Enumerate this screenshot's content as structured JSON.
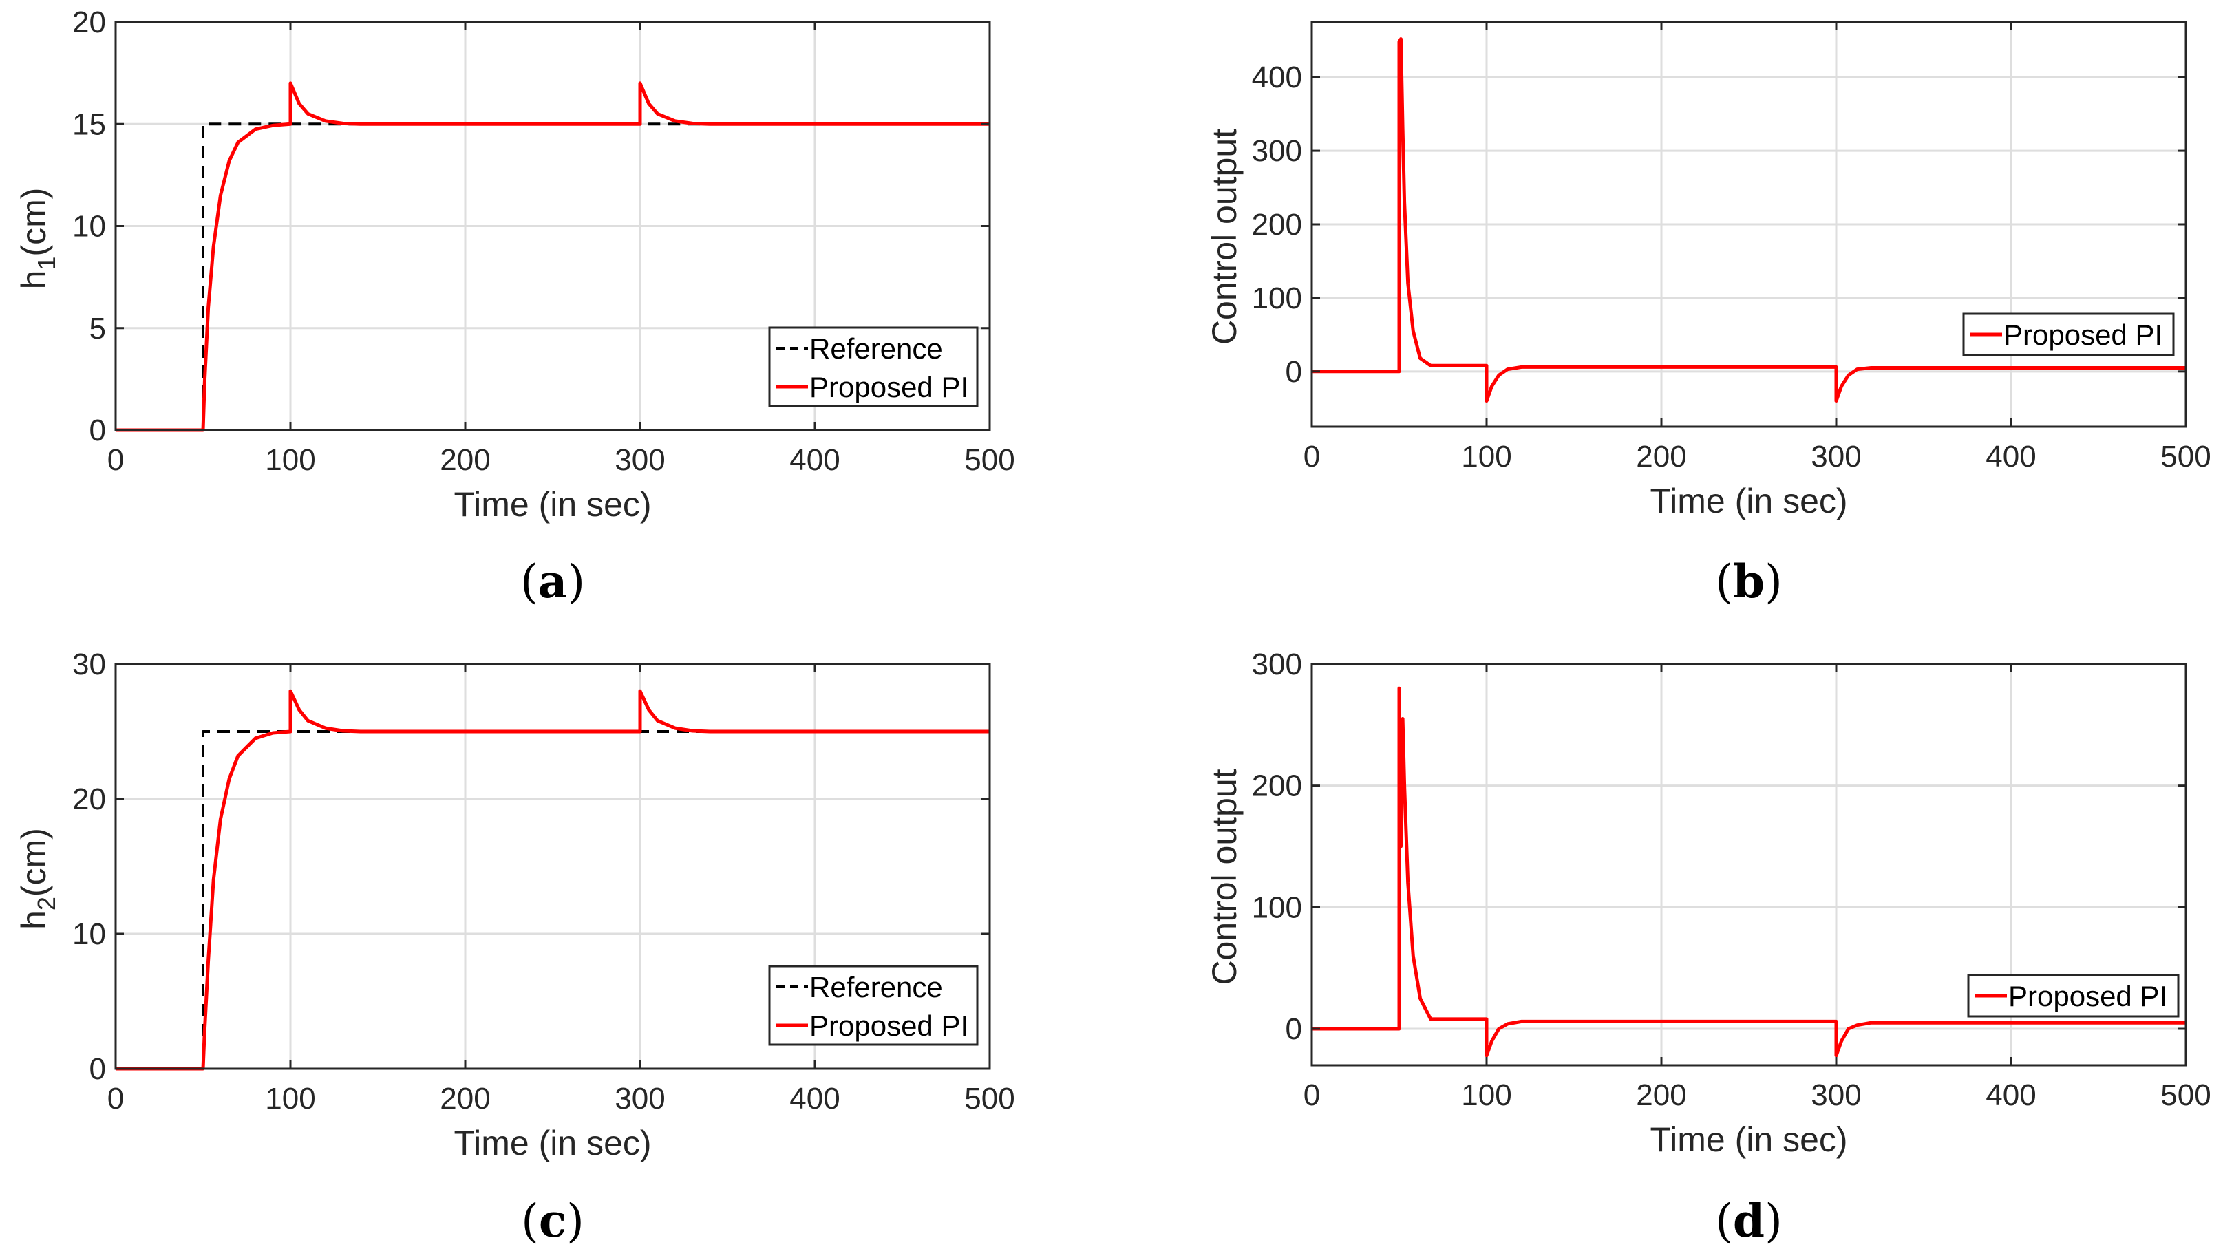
{
  "figure": {
    "panel_count": 4
  },
  "chart_data": [
    {
      "type": "line",
      "panel": "a",
      "caption_letter": "a",
      "xlabel": "Time (in sec)",
      "ylabel_main": "h",
      "ylabel_sub": "1",
      "ylabel_suffix": "(cm)",
      "xlim": [
        0,
        500
      ],
      "ylim": [
        0,
        20
      ],
      "xticks": [
        0,
        100,
        200,
        300,
        400,
        500
      ],
      "yticks": [
        0,
        5,
        10,
        15,
        20
      ],
      "grid": true,
      "legend_position": "bottom-right",
      "series": [
        {
          "name": "Reference",
          "style": "dashed",
          "color": "#000000",
          "points": [
            [
              0,
              0
            ],
            [
              50,
              0
            ],
            [
              50,
              15
            ],
            [
              500,
              15
            ]
          ]
        },
        {
          "name": "Proposed PI",
          "style": "solid",
          "color": "#ff0000",
          "points": [
            [
              0,
              0
            ],
            [
              50,
              0
            ],
            [
              51,
              2.5
            ],
            [
              53,
              6
            ],
            [
              56,
              9
            ],
            [
              60,
              11.5
            ],
            [
              65,
              13.2
            ],
            [
              70,
              14.1
            ],
            [
              80,
              14.75
            ],
            [
              90,
              14.93
            ],
            [
              100,
              15
            ],
            [
              100,
              17
            ],
            [
              105,
              16
            ],
            [
              110,
              15.5
            ],
            [
              120,
              15.15
            ],
            [
              130,
              15.03
            ],
            [
              140,
              15
            ],
            [
              300,
              15
            ],
            [
              300,
              17
            ],
            [
              305,
              16
            ],
            [
              310,
              15.5
            ],
            [
              320,
              15.15
            ],
            [
              330,
              15.03
            ],
            [
              340,
              15
            ],
            [
              500,
              15
            ]
          ]
        }
      ]
    },
    {
      "type": "line",
      "panel": "b",
      "caption_letter": "b",
      "xlabel": "Time (in sec)",
      "ylabel": "Control output",
      "xlim": [
        0,
        500
      ],
      "ylim": [
        -75,
        475
      ],
      "xticks": [
        0,
        100,
        200,
        300,
        400,
        500
      ],
      "yticks": [
        0,
        100,
        200,
        300,
        400
      ],
      "grid": true,
      "legend_position": "right",
      "series": [
        {
          "name": "Proposed PI",
          "style": "solid",
          "color": "#ff0000",
          "points": [
            [
              0,
              0
            ],
            [
              50,
              0
            ],
            [
              50,
              448
            ],
            [
              51,
              452
            ],
            [
              52,
              330
            ],
            [
              53,
              230
            ],
            [
              55,
              120
            ],
            [
              58,
              55
            ],
            [
              62,
              18
            ],
            [
              68,
              8
            ],
            [
              100,
              8
            ],
            [
              100,
              -40
            ],
            [
              103,
              -20
            ],
            [
              107,
              -5
            ],
            [
              112,
              3
            ],
            [
              120,
              6
            ],
            [
              300,
              6
            ],
            [
              300,
              -40
            ],
            [
              303,
              -20
            ],
            [
              307,
              -5
            ],
            [
              312,
              3
            ],
            [
              320,
              5
            ],
            [
              500,
              5
            ]
          ]
        }
      ]
    },
    {
      "type": "line",
      "panel": "c",
      "caption_letter": "c",
      "xlabel": "Time (in sec)",
      "ylabel_main": "h",
      "ylabel_sub": "2",
      "ylabel_suffix": "(cm)",
      "xlim": [
        0,
        500
      ],
      "ylim": [
        0,
        30
      ],
      "xticks": [
        0,
        100,
        200,
        300,
        400,
        500
      ],
      "yticks": [
        0,
        10,
        20,
        30
      ],
      "grid": true,
      "legend_position": "bottom-right",
      "series": [
        {
          "name": "Reference",
          "style": "dashed",
          "color": "#000000",
          "points": [
            [
              0,
              0
            ],
            [
              50,
              0
            ],
            [
              50,
              25
            ],
            [
              500,
              25
            ]
          ]
        },
        {
          "name": "Proposed PI",
          "style": "solid",
          "color": "#ff0000",
          "points": [
            [
              0,
              0
            ],
            [
              50,
              0
            ],
            [
              51,
              3
            ],
            [
              53,
              8
            ],
            [
              56,
              14
            ],
            [
              60,
              18.5
            ],
            [
              65,
              21.5
            ],
            [
              70,
              23.2
            ],
            [
              80,
              24.5
            ],
            [
              90,
              24.9
            ],
            [
              100,
              25
            ],
            [
              100,
              28
            ],
            [
              105,
              26.6
            ],
            [
              110,
              25.8
            ],
            [
              120,
              25.25
            ],
            [
              130,
              25.05
            ],
            [
              140,
              25
            ],
            [
              300,
              25
            ],
            [
              300,
              28
            ],
            [
              305,
              26.6
            ],
            [
              310,
              25.8
            ],
            [
              320,
              25.25
            ],
            [
              330,
              25.05
            ],
            [
              340,
              25
            ],
            [
              500,
              25
            ]
          ]
        }
      ]
    },
    {
      "type": "line",
      "panel": "d",
      "caption_letter": "d",
      "xlabel": "Time (in sec)",
      "ylabel": "Control output",
      "xlim": [
        0,
        500
      ],
      "ylim": [
        -30,
        300
      ],
      "xticks": [
        0,
        100,
        200,
        300,
        400,
        500
      ],
      "yticks": [
        0,
        100,
        200,
        300
      ],
      "grid": true,
      "legend_position": "right",
      "series": [
        {
          "name": "Proposed PI",
          "style": "solid",
          "color": "#ff0000",
          "points": [
            [
              0,
              0
            ],
            [
              50,
              0
            ],
            [
              50,
              280
            ],
            [
              51,
              150
            ],
            [
              52,
              255
            ],
            [
              53,
              200
            ],
            [
              55,
              120
            ],
            [
              58,
              60
            ],
            [
              62,
              25
            ],
            [
              68,
              8
            ],
            [
              100,
              8
            ],
            [
              100,
              -22
            ],
            [
              103,
              -10
            ],
            [
              107,
              0
            ],
            [
              112,
              4
            ],
            [
              120,
              6
            ],
            [
              300,
              6
            ],
            [
              300,
              -22
            ],
            [
              303,
              -10
            ],
            [
              307,
              0
            ],
            [
              312,
              3
            ],
            [
              320,
              5
            ],
            [
              500,
              5
            ]
          ]
        }
      ]
    }
  ]
}
